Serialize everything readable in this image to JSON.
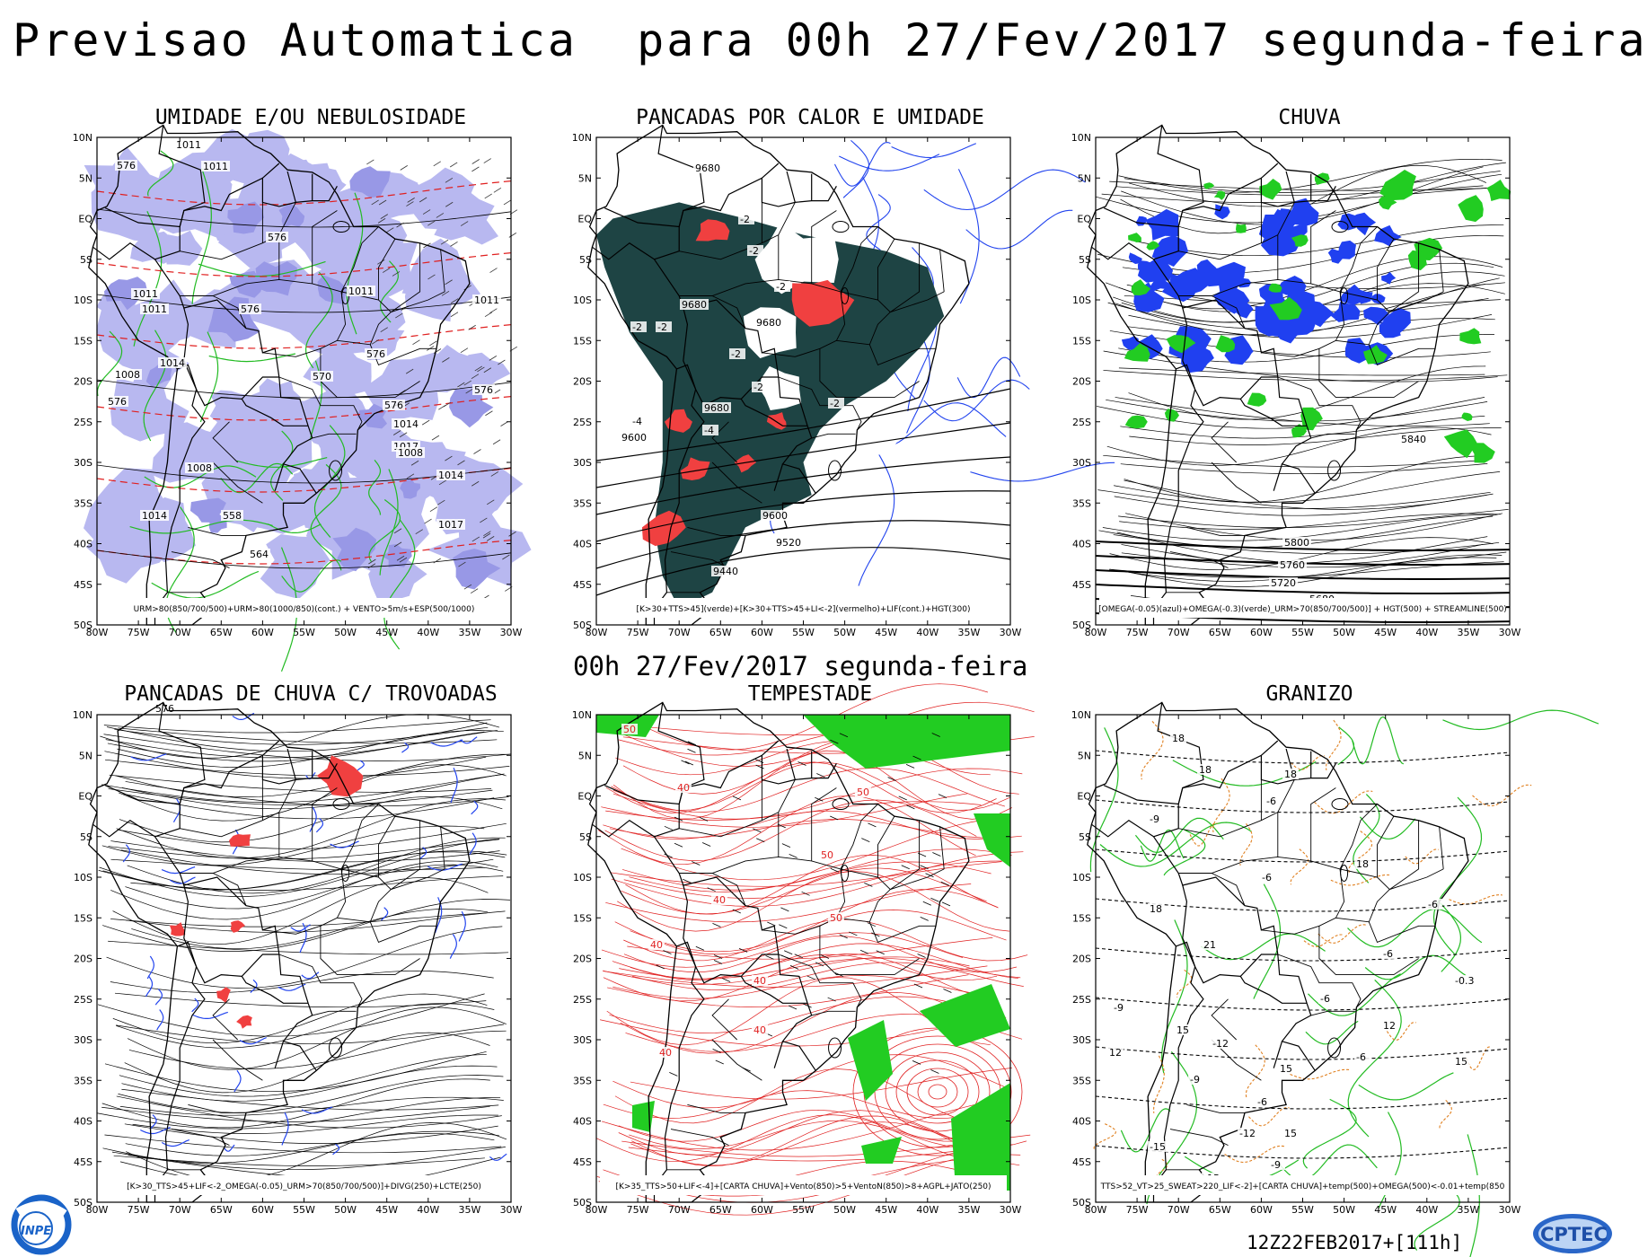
{
  "header": {
    "title": "Previsao Automatica  para 00h 27/Fev/2017 segunda-feira",
    "mid_title": "00h 27/Fev/2017 segunda-feira",
    "run_label": "12Z22FEB2017+[111h]"
  },
  "axes": {
    "lat_labels": [
      "10N",
      "5N",
      "EQ",
      "5S",
      "10S",
      "15S",
      "20S",
      "25S",
      "30S",
      "35S",
      "40S",
      "45S",
      "50S"
    ],
    "lon_labels": [
      "80W",
      "75W",
      "70W",
      "65W",
      "60W",
      "55W",
      "50W",
      "45W",
      "40W",
      "35W",
      "30W"
    ]
  },
  "colors": {
    "blue_shade": "#b8b8f0",
    "green_contour": "#22bb22",
    "red_contour": "#e02020",
    "dark_teal": "#1e4444",
    "blue_fill": "#2040f0",
    "green_fill": "#22cc22",
    "red_fill": "#f04040",
    "orange_contour": "#e08020",
    "blue_contour": "#2244ee"
  },
  "panels": [
    {
      "title": "UMIDADE E/OU NEBULOSIDADE",
      "legend": "URM>80(850/700/500)+URM>80(1000/850)(cont.) + VENTO>5m/s+ESP(500/1000)",
      "labels": [
        "1011",
        "576",
        "1011",
        "576",
        "1011",
        "576",
        "1011",
        "1011",
        "1014",
        "1008",
        "576",
        "1011",
        "576",
        "1008",
        "1014",
        "1017",
        "1014",
        "1008",
        "576",
        "570",
        "564",
        "1017",
        "558",
        "1014",
        "576",
        "576"
      ]
    },
    {
      "title": "PANCADAS POR CALOR E UMIDADE",
      "legend": "[K>30+TTS>45](verde)+[K>30+TTS>45+LI<-2](vermelho)+LIF(cont.)+HGT(300)",
      "labels": [
        "9680",
        "9680",
        "9680",
        "9680",
        "9600",
        "9600",
        "9520",
        "9440",
        "-2",
        "-2",
        "-2",
        "-2",
        "-2",
        "-2",
        "-2",
        "-4",
        "-4",
        "-2"
      ]
    },
    {
      "title": "CHUVA",
      "legend": "[OMEGA(-0.05)(azul)+OMEGA(-0.3)(verde)_URM>70(850/700/500)] + HGT(500) + STREAMLINE(500)",
      "labels": [
        "5840",
        "5800",
        "5760",
        "5720",
        "5680"
      ]
    },
    {
      "title": "PANCADAS DE CHUVA C/ TROVOADAS",
      "legend": "[K>30_TTS>45+LIF<-2_OMEGA(-0.05)_URM>70(850/700/500)]+DIVG(250)+LCTE(250)",
      "labels": []
    },
    {
      "title": "TEMPESTADE",
      "legend": "[K>35_TTS>50+LIF<-4]+[CARTA CHUVA]+Vento(850)>5+VentoN(850)>8+AGPL+JATO(250)",
      "labels": [
        "50",
        "40",
        "40",
        "40",
        "50",
        "40",
        "50",
        "40",
        "50",
        "40"
      ]
    },
    {
      "title": "GRANIZO",
      "legend": "TTS>52_VT>25_SWEAT>220_LIF<-2]+[CARTA CHUVA]+temp(500)+OMEGA(500)<-0.01+temp(850",
      "labels": [
        "18",
        "18",
        "18",
        "-6",
        "-9",
        "18",
        "21",
        "-6",
        "-6",
        "-6",
        "-9",
        "-6",
        "12",
        "15",
        "15",
        "-9",
        "-12",
        "-6",
        "12",
        "15",
        "-15",
        "18",
        "-12",
        "-9",
        "15",
        "-15",
        "-12",
        "-0.3",
        "-6"
      ]
    }
  ],
  "logos": {
    "left": "INPE",
    "right": "CPTEC"
  }
}
